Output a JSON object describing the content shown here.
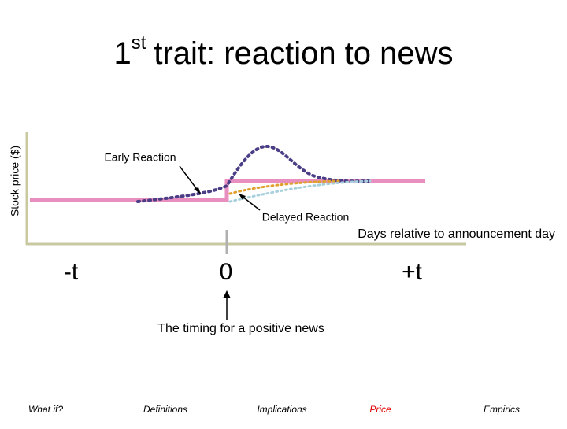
{
  "header": {
    "number": "1",
    "superscript": "st",
    "title": "trait: reaction to news"
  },
  "diagram": {
    "y_axis_label": "Stock price ($)",
    "x_axis_label": "Days relative to announcement day",
    "annotations": [
      "Early Reaction",
      "Delayed Reaction",
      "The timing for a positive news"
    ],
    "time_labels": [
      "-t",
      "0",
      "+t"
    ]
  },
  "nav": [
    "What if?",
    "Definitions",
    "Implications",
    "Price",
    "Empirics"
  ]
}
